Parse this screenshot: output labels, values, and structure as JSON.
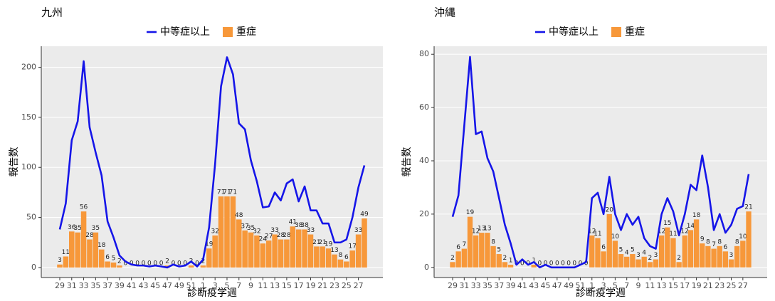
{
  "chart_data": [
    {
      "type": "bar_line",
      "title": "九州",
      "x_label": "診断疫学週",
      "y_label": "報告数",
      "categories": [
        "29",
        null,
        "31",
        null,
        "33",
        null,
        "35",
        null,
        "37",
        null,
        "39",
        null,
        "41",
        null,
        "43",
        null,
        "45",
        null,
        "47",
        null,
        "49",
        null,
        "51",
        null,
        "1",
        null,
        "3",
        null,
        "5",
        null,
        "7",
        null,
        "9",
        null,
        "11",
        null,
        "13",
        null,
        "15",
        null,
        "17",
        null,
        "19",
        null,
        "21",
        null,
        "23",
        null,
        "25",
        null,
        "27",
        null
      ],
      "ylim": [
        -10,
        221
      ],
      "yticks": [
        0,
        50,
        100,
        150,
        200
      ],
      "grid": true,
      "series": [
        {
          "name": "中等症以上",
          "kind": "line",
          "color": "#1515e8",
          "values": [
            38,
            64,
            127,
            146,
            206,
            140,
            115,
            92,
            46,
            30,
            12,
            6,
            3,
            2,
            2,
            1,
            2,
            1,
            0,
            3,
            1,
            2,
            6,
            1,
            8,
            40,
            103,
            181,
            210,
            193,
            144,
            138,
            107,
            86,
            60,
            61,
            75,
            67,
            84,
            88,
            66,
            81,
            57,
            57,
            44,
            44,
            25,
            25,
            28,
            50,
            80,
            102
          ]
        },
        {
          "name": "重症",
          "kind": "bar",
          "color": "#f7983a",
          "values": [
            3,
            11,
            36,
            35,
            56,
            28,
            35,
            18,
            6,
            5,
            2,
            0,
            0,
            0,
            0,
            0,
            0,
            0,
            2,
            0,
            0,
            0,
            2,
            0,
            2,
            19,
            32,
            71,
            71,
            71,
            48,
            37,
            35,
            32,
            24,
            27,
            33,
            28,
            28,
            41,
            38,
            38,
            33,
            21,
            21,
            19,
            13,
            8,
            6,
            17,
            33,
            49
          ]
        }
      ]
    },
    {
      "type": "bar_line",
      "title": "沖縄",
      "x_label": "診断疫学週",
      "y_label": "報告数",
      "categories": [
        "29",
        null,
        "31",
        null,
        "33",
        null,
        "35",
        null,
        "37",
        null,
        "39",
        null,
        "41",
        null,
        "43",
        null,
        "45",
        null,
        "47",
        null,
        "49",
        null,
        "51",
        null,
        "1",
        null,
        "3",
        null,
        "5",
        null,
        "7",
        null,
        "9",
        null,
        "11",
        null,
        "13",
        null,
        "15",
        null,
        "17",
        null,
        "19",
        null,
        "21",
        null,
        "23",
        null,
        "25",
        null,
        "27",
        null
      ],
      "ylim": [
        -3.8,
        83
      ],
      "yticks": [
        0,
        20,
        40,
        60,
        80
      ],
      "grid": true,
      "series": [
        {
          "name": "中等症以上",
          "kind": "line",
          "color": "#1515e8",
          "values": [
            19,
            27,
            53,
            79,
            50,
            51,
            41,
            36,
            26,
            16,
            9,
            1,
            3,
            1,
            2,
            0,
            1,
            0,
            0,
            0,
            0,
            0,
            1,
            2,
            26,
            28,
            20,
            34,
            20,
            14,
            20,
            16,
            19,
            11,
            8,
            7,
            20,
            26,
            21,
            12,
            20,
            31,
            29,
            42,
            30,
            14,
            20,
            13,
            16,
            22,
            23,
            35
          ]
        },
        {
          "name": "重症",
          "kind": "bar",
          "color": "#f7983a",
          "values": [
            2,
            6,
            7,
            19,
            12,
            13,
            13,
            8,
            5,
            2,
            1,
            0,
            0,
            0,
            1,
            0,
            0,
            0,
            0,
            0,
            0,
            0,
            0,
            0,
            12,
            11,
            6,
            20,
            10,
            5,
            4,
            5,
            3,
            4,
            2,
            3,
            12,
            15,
            11,
            2,
            12,
            14,
            18,
            9,
            8,
            7,
            8,
            6,
            3,
            8,
            10,
            21
          ]
        }
      ]
    }
  ]
}
